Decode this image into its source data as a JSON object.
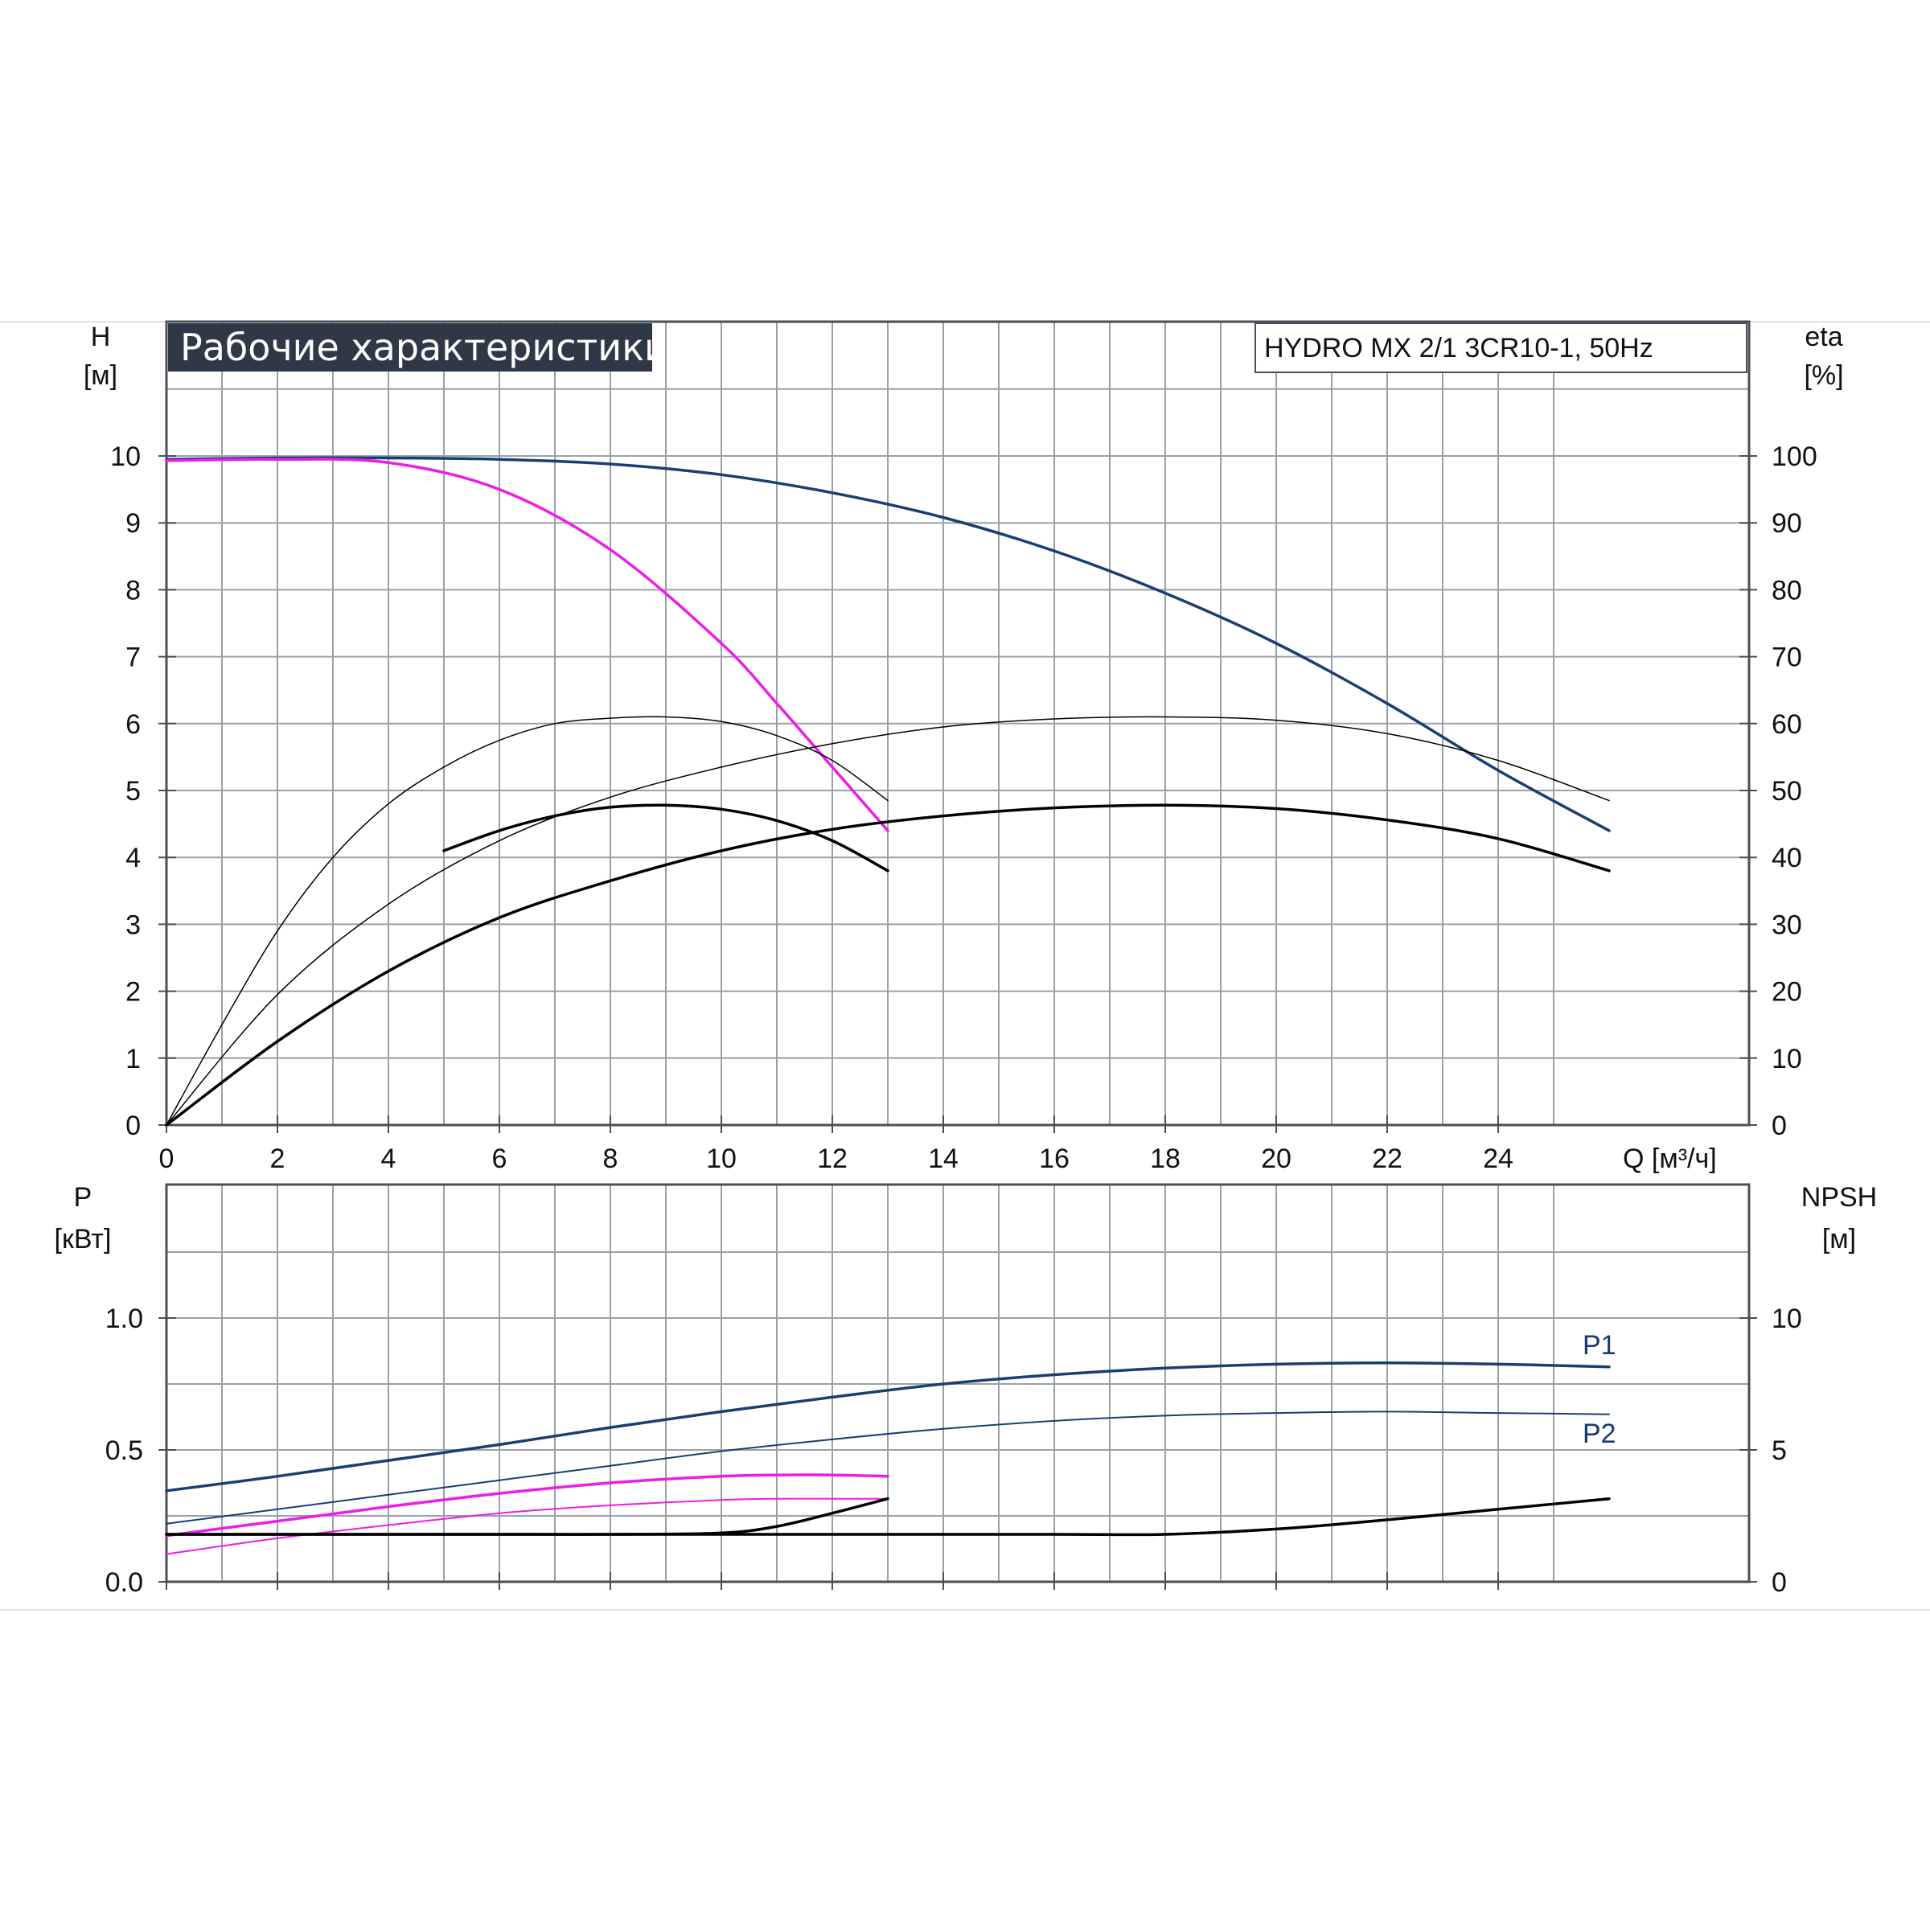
{
  "title": "Рабочие характеристики",
  "model": "HYDRO MX 2/1 3CR10-1, 50Hz",
  "colors": {
    "blue": "#1b3d72",
    "magenta": "#ee1ce8",
    "black": "#000000",
    "grid": "#9aa0a8",
    "frame": "#4a4f57",
    "title_bg": "#2f3846"
  },
  "chart_data": [
    {
      "type": "line",
      "panel": "head-efficiency",
      "xlabel": "Q [м³/ч]",
      "ylabel": "H",
      "ylabel_unit": "[м]",
      "y2label": "eta",
      "y2label_unit": "[%]",
      "xlim": [
        0,
        26
      ],
      "ylim": [
        0,
        10
      ],
      "y2lim": [
        0,
        100
      ],
      "xticks": [
        "0",
        "2",
        "4",
        "6",
        "8",
        "10",
        "12",
        "14",
        "16",
        "18",
        "20",
        "22",
        "24"
      ],
      "yticks": [
        "0",
        "1",
        "2",
        "3",
        "4",
        "5",
        "6",
        "7",
        "8",
        "9",
        "10"
      ],
      "y2ticks": [
        "0",
        "10",
        "20",
        "30",
        "40",
        "50",
        "60",
        "70",
        "80",
        "90",
        "100"
      ],
      "grid": true,
      "series": [
        {
          "color": "blue",
          "width": 3.5,
          "x": [
            0,
            2,
            4,
            6,
            8,
            10,
            12,
            14,
            16,
            18,
            20,
            22,
            24,
            26
          ],
          "y": [
            9.95,
            9.97,
            9.97,
            9.95,
            9.88,
            9.72,
            9.45,
            9.08,
            8.58,
            7.95,
            7.2,
            6.3,
            5.3,
            4.4
          ]
        },
        {
          "color": "magenta",
          "width": 3.5,
          "x": [
            0,
            2,
            4,
            6,
            8,
            10,
            11,
            12,
            13
          ],
          "y": [
            9.93,
            9.95,
            9.9,
            9.5,
            8.6,
            7.2,
            6.3,
            5.35,
            4.4
          ]
        },
        {
          "color": "black",
          "width": 1.5,
          "x": [
            0,
            1,
            2,
            3,
            4,
            5,
            6,
            7,
            8,
            9,
            10,
            11,
            12,
            13
          ],
          "y": [
            0,
            1.5,
            2.9,
            4.0,
            4.8,
            5.35,
            5.75,
            6.0,
            6.08,
            6.1,
            6.03,
            5.82,
            5.45,
            4.85
          ]
        },
        {
          "color": "black",
          "width": 3.5,
          "x": [
            5,
            6,
            7,
            8,
            9,
            10,
            11,
            12,
            13
          ],
          "y": [
            4.1,
            4.4,
            4.62,
            4.75,
            4.78,
            4.72,
            4.55,
            4.25,
            3.8
          ]
        },
        {
          "color": "black",
          "width": 1.5,
          "x": [
            0,
            2,
            4,
            6,
            8,
            10,
            12,
            14,
            16,
            18,
            20,
            22,
            24,
            26
          ],
          "y": [
            0,
            1.95,
            3.3,
            4.25,
            4.9,
            5.35,
            5.7,
            5.95,
            6.07,
            6.1,
            6.05,
            5.85,
            5.45,
            4.85
          ]
        },
        {
          "color": "black",
          "width": 3.5,
          "x": [
            0,
            2,
            4,
            6,
            8,
            10,
            12,
            14,
            16,
            18,
            20,
            22,
            24,
            26
          ],
          "y": [
            0,
            1.25,
            2.3,
            3.1,
            3.65,
            4.1,
            4.42,
            4.62,
            4.74,
            4.78,
            4.73,
            4.56,
            4.28,
            3.8
          ]
        }
      ]
    },
    {
      "type": "line",
      "panel": "power-npsh",
      "ylabel": "P",
      "ylabel_unit": "[кВт]",
      "y2label": "NPSH",
      "y2label_unit": "[м]",
      "xlim": [
        0,
        26
      ],
      "ylim": [
        0,
        1.5
      ],
      "y2lim": [
        0,
        15
      ],
      "yticks": [
        "0.0",
        "0.5",
        "1.0"
      ],
      "y2ticks": [
        "0",
        "5",
        "10"
      ],
      "grid": true,
      "series": [
        {
          "name": "P1",
          "color": "blue",
          "width": 3.5,
          "x": [
            0,
            2,
            4,
            6,
            8,
            10,
            12,
            14,
            16,
            18,
            20,
            22,
            24,
            26
          ],
          "y": [
            0.345,
            0.4,
            0.46,
            0.52,
            0.585,
            0.645,
            0.7,
            0.75,
            0.785,
            0.81,
            0.825,
            0.83,
            0.825,
            0.815
          ]
        },
        {
          "name": "P2",
          "color": "blue",
          "width": 2,
          "x": [
            0,
            2,
            4,
            6,
            8,
            10,
            12,
            14,
            16,
            18,
            20,
            22,
            24,
            26
          ],
          "y": [
            0.22,
            0.275,
            0.33,
            0.385,
            0.44,
            0.495,
            0.54,
            0.58,
            0.61,
            0.63,
            0.64,
            0.645,
            0.64,
            0.635
          ]
        },
        {
          "color": "magenta",
          "width": 3.5,
          "x": [
            0,
            2,
            4,
            6,
            8,
            10,
            11,
            12,
            13
          ],
          "y": [
            0.175,
            0.23,
            0.285,
            0.335,
            0.375,
            0.4,
            0.405,
            0.405,
            0.4
          ]
        },
        {
          "color": "magenta",
          "width": 2,
          "x": [
            0,
            2,
            4,
            6,
            8,
            10,
            11,
            12,
            13
          ],
          "y": [
            0.105,
            0.165,
            0.215,
            0.26,
            0.29,
            0.31,
            0.315,
            0.315,
            0.315
          ]
        },
        {
          "color": "black",
          "width": 3.5,
          "x": [
            0,
            2,
            4,
            6,
            8,
            10,
            11,
            12,
            13
          ],
          "y": [
            0.18,
            0.18,
            0.18,
            0.18,
            0.18,
            0.185,
            0.21,
            0.26,
            0.315
          ]
        },
        {
          "color": "black",
          "width": 3.5,
          "x": [
            0,
            4,
            8,
            12,
            16,
            18,
            20,
            22,
            24,
            26
          ],
          "y": [
            0.18,
            0.18,
            0.18,
            0.18,
            0.18,
            0.18,
            0.2,
            0.235,
            0.275,
            0.315
          ]
        }
      ]
    }
  ]
}
